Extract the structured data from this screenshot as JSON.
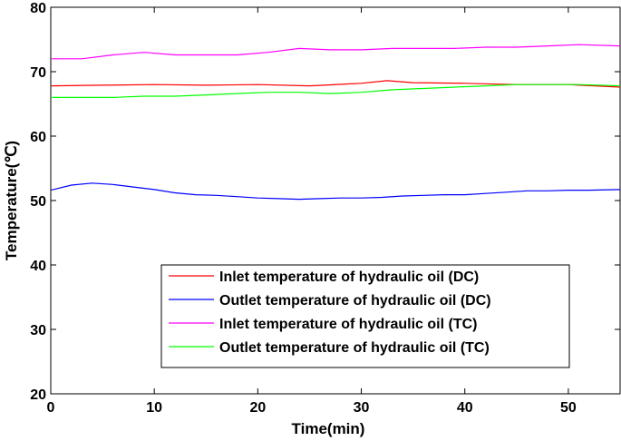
{
  "chart_data": {
    "type": "line",
    "title": "",
    "xlabel": "Time(min)",
    "ylabel": "Temperature(℃)",
    "xlim": [
      0,
      55
    ],
    "ylim": [
      20,
      80
    ],
    "xticks": [
      "0",
      "10",
      "20",
      "30",
      "40",
      "50"
    ],
    "yticks": [
      "20",
      "30",
      "40",
      "50",
      "60",
      "70",
      "80"
    ],
    "grid": false,
    "legend_position": "bottom-right",
    "series": [
      {
        "name": "Inlet temperature of hydraulic oil (DC)",
        "color": "#ff0000",
        "x": [
          0,
          5,
          10,
          15,
          20,
          25,
          30,
          32.5,
          35,
          40,
          45,
          50,
          55
        ],
        "y": [
          67.8,
          67.9,
          68.0,
          67.9,
          68.0,
          67.8,
          68.2,
          68.6,
          68.3,
          68.2,
          68.0,
          68.0,
          67.6
        ]
      },
      {
        "name": "Outlet temperature of hydraulic oil (DC)",
        "color": "#0000ff",
        "x": [
          0,
          2,
          4,
          6,
          8,
          10,
          12,
          14,
          16,
          18,
          20,
          22,
          24,
          26,
          28,
          30,
          32,
          34,
          36,
          38,
          40,
          42,
          44,
          46,
          48,
          50,
          52,
          55
        ],
        "y": [
          51.6,
          52.4,
          52.7,
          52.5,
          52.1,
          51.7,
          51.2,
          50.9,
          50.8,
          50.6,
          50.4,
          50.3,
          50.2,
          50.3,
          50.4,
          50.4,
          50.5,
          50.7,
          50.8,
          50.9,
          50.9,
          51.1,
          51.3,
          51.5,
          51.5,
          51.6,
          51.6,
          51.7
        ]
      },
      {
        "name": "Inlet temperature of hydraulic oil (TC)",
        "color": "#ff00ff",
        "x": [
          0,
          3,
          6,
          9,
          12,
          15,
          18,
          21,
          24,
          27,
          30,
          33,
          36,
          39,
          42,
          45,
          48,
          51,
          55
        ],
        "y": [
          72.0,
          72.0,
          72.6,
          73.0,
          72.6,
          72.6,
          72.6,
          73.0,
          73.6,
          73.4,
          73.4,
          73.6,
          73.6,
          73.6,
          73.8,
          73.8,
          74.0,
          74.2,
          74.0
        ]
      },
      {
        "name": "Outlet temperature of hydraulic oil (TC)",
        "color": "#00ff00",
        "x": [
          0,
          3,
          6,
          9,
          12,
          15,
          18,
          21,
          24,
          27,
          30,
          33,
          36,
          39,
          42,
          45,
          48,
          51,
          55
        ],
        "y": [
          66.0,
          66.0,
          66.0,
          66.2,
          66.2,
          66.4,
          66.6,
          66.8,
          66.8,
          66.6,
          66.8,
          67.2,
          67.4,
          67.6,
          67.8,
          68.0,
          68.0,
          68.0,
          67.8
        ]
      }
    ]
  }
}
